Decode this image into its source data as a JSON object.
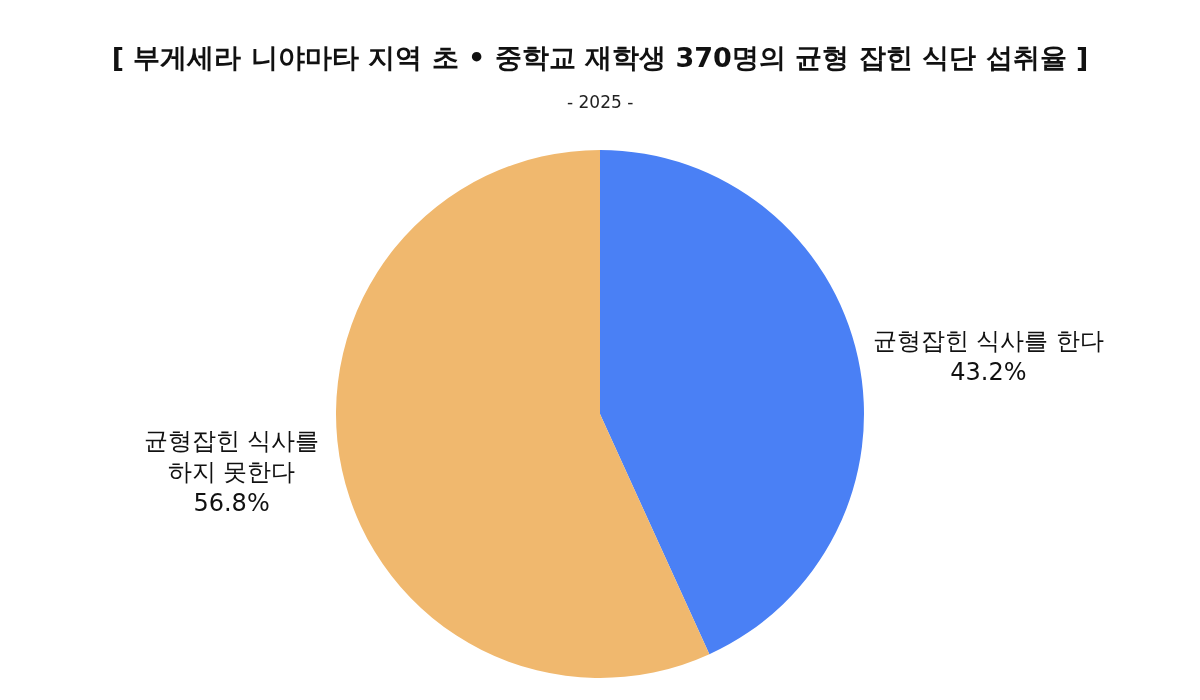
{
  "chart_data": {
    "type": "pie",
    "title": "[ 부게세라 니야마타 지역 초 • 중학교 재학생 370명의 균형 잡힌 식단 섭취율 ]",
    "subtitle": "- 2025 -",
    "categories": [
      "균형잡힌 식사를 한다",
      "균형잡힌 식사를 하지 못한다"
    ],
    "values": [
      43.2,
      56.8
    ],
    "value_labels": [
      "43.2%",
      "56.8%"
    ],
    "colors": [
      "#4a80f5",
      "#f0b86e"
    ]
  }
}
